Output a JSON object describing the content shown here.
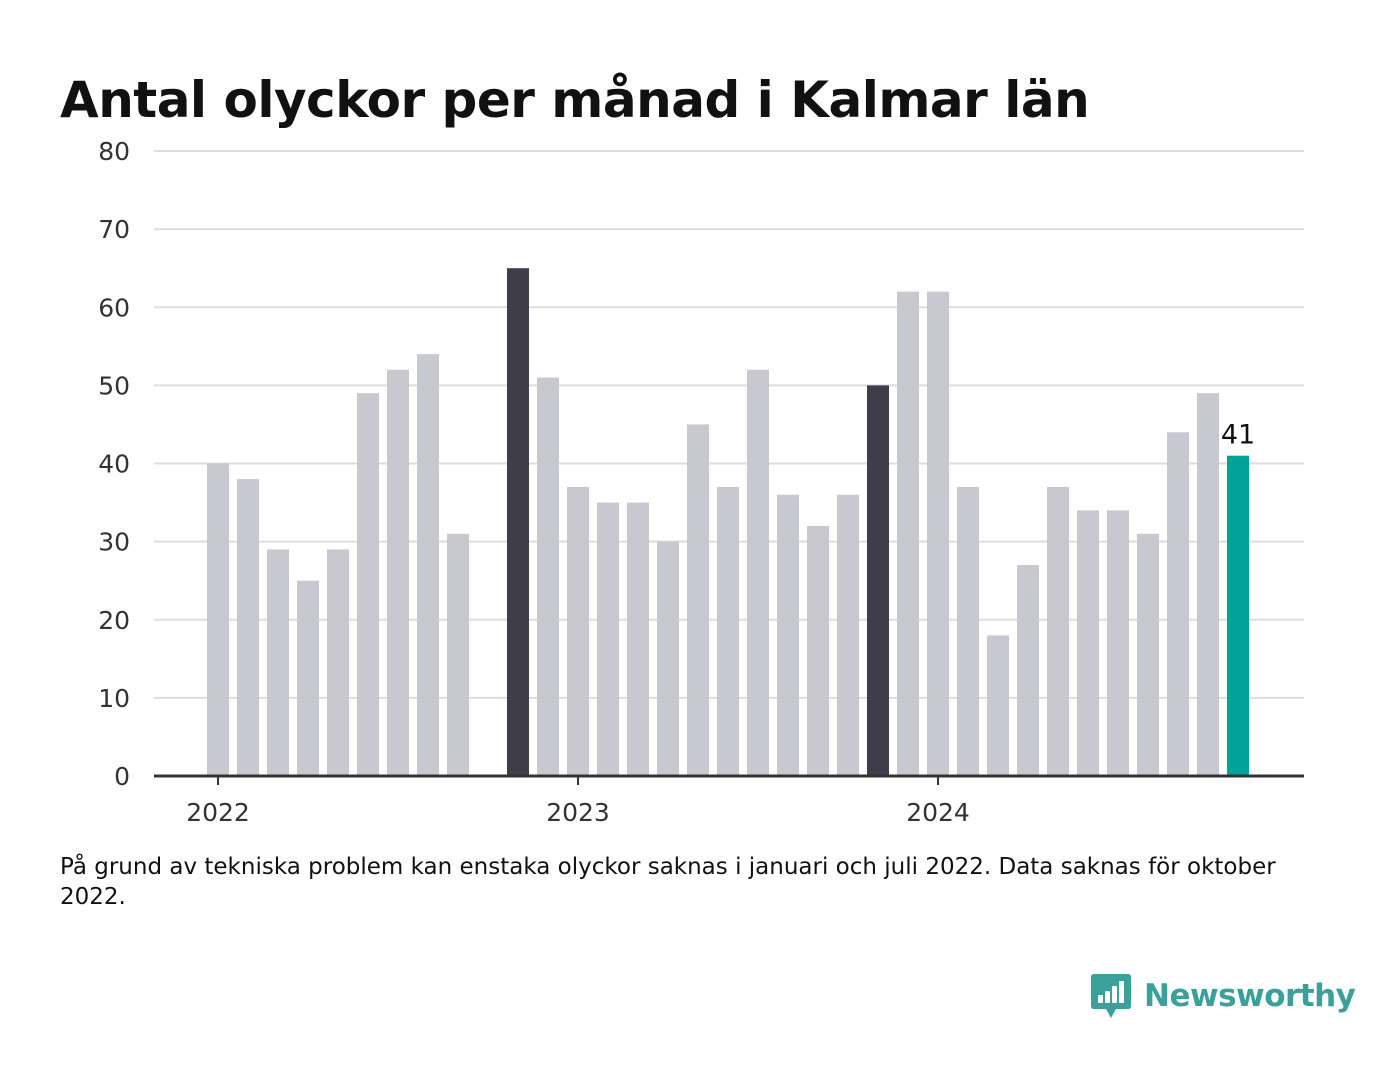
{
  "title": "Antal olyckor per månad i Kalmar län",
  "note": "På grund av tekniska problem kan enstaka olyckor saknas i januari och juli 2022. Data saknas för oktober 2022.",
  "brand": {
    "name": "Newsworthy",
    "icon": "newsworthy-logo-icon",
    "color": "#3aa19a"
  },
  "colors": {
    "bar": "#c8c8d0",
    "bar_highlight": "#3f3d4a",
    "bar_latest": "#00a39a",
    "grid": "#dddddd",
    "axis": "#333333"
  },
  "chart_data": {
    "type": "bar",
    "title": "Antal olyckor per månad i Kalmar län",
    "xlabel": "",
    "ylabel": "",
    "ylim": [
      0,
      80
    ],
    "yticks": [
      "0",
      "10",
      "20",
      "30",
      "40",
      "50",
      "60",
      "70",
      "80"
    ],
    "xticks": [
      {
        "label": "2022",
        "month": "2022-01"
      },
      {
        "label": "2023",
        "month": "2023-01"
      },
      {
        "label": "2024",
        "month": "2024-01"
      }
    ],
    "grid": true,
    "legend": "none",
    "months": [
      "2022-01",
      "2022-02",
      "2022-03",
      "2022-04",
      "2022-05",
      "2022-06",
      "2022-07",
      "2022-08",
      "2022-09",
      "2022-10",
      "2022-11",
      "2022-12",
      "2023-01",
      "2023-02",
      "2023-03",
      "2023-04",
      "2023-05",
      "2023-06",
      "2023-07",
      "2023-08",
      "2023-09",
      "2023-10",
      "2023-11",
      "2023-12",
      "2024-01",
      "2024-02",
      "2024-03",
      "2024-04",
      "2024-05",
      "2024-06",
      "2024-07",
      "2024-08",
      "2024-09",
      "2024-10",
      "2024-11",
      "2024-12"
    ],
    "values": [
      40,
      38,
      29,
      25,
      29,
      49,
      52,
      54,
      31,
      null,
      65,
      51,
      37,
      35,
      35,
      30,
      45,
      37,
      52,
      36,
      32,
      36,
      50,
      62,
      62,
      37,
      18,
      27,
      37,
      34,
      34,
      31,
      44,
      49,
      41,
      null
    ],
    "highlighted": [
      "2022-11",
      "2023-11"
    ],
    "latest": {
      "month": "2024-11",
      "value": 41,
      "label": "41"
    }
  }
}
